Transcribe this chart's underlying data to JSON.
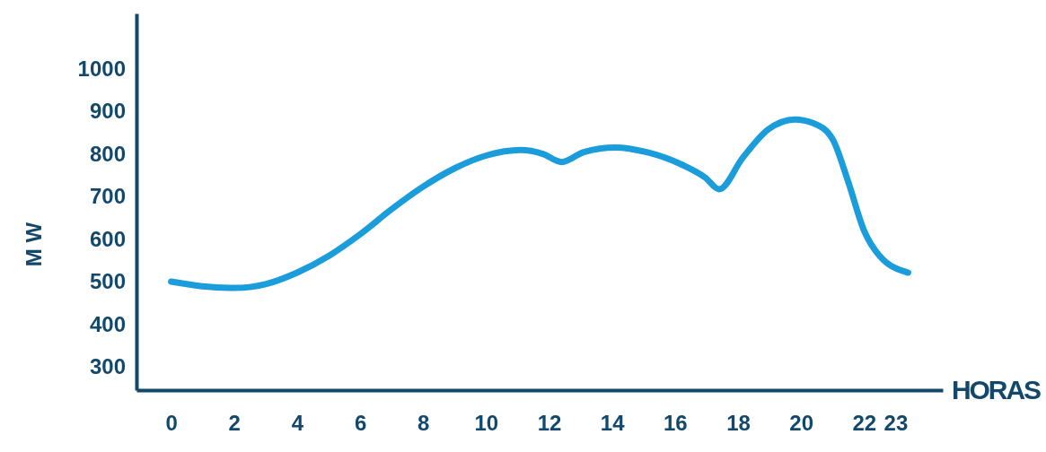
{
  "chart_data": {
    "type": "line",
    "xlabel": "HORAS",
    "ylabel": "M W",
    "x": [
      0,
      1,
      2,
      3,
      4,
      5,
      6,
      7,
      8,
      9,
      10,
      11.1,
      11.8,
      12.4,
      13.1,
      14.1,
      15.1,
      16.15,
      16.95,
      17.4,
      18.15,
      18.95,
      19.8,
      20.4,
      21,
      21.5,
      22,
      22.5,
      23.4
    ],
    "series": [
      {
        "color": "#1b9ddb",
        "values": [
          500,
          489,
          485,
          494,
          521,
          560,
          611,
          670,
          723,
          766,
          796,
          809,
          800,
          781,
          804,
          815,
          804,
          777,
          745,
          717,
          791,
          857,
          881,
          872,
          835,
          734,
          620,
          560,
          521
        ]
      }
    ],
    "xlim": [
      -1.1,
      24.5
    ],
    "xticks": [
      0,
      2,
      4,
      6,
      8,
      10,
      12,
      14,
      16,
      18,
      20,
      22,
      23
    ],
    "ylim": [
      245,
      1130
    ],
    "yticks": [
      300,
      400,
      500,
      600,
      700,
      800,
      900,
      1000
    ],
    "grid": false,
    "marker": "none",
    "line_style": "solid"
  }
}
